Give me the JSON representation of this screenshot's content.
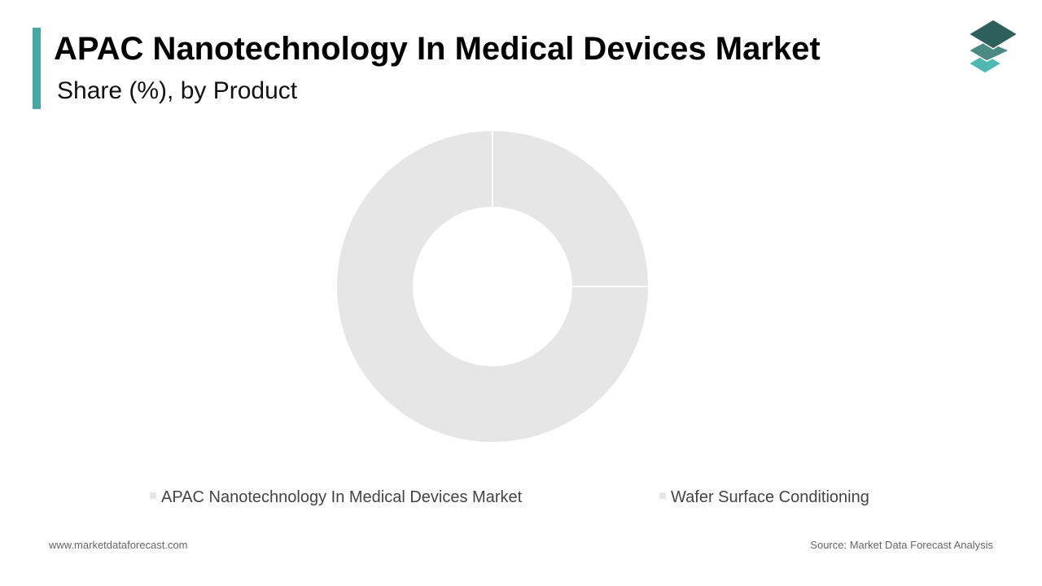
{
  "header": {
    "title": "APAC Nanotechnology In Medical Devices Market",
    "subtitle": "Share (%), by Product"
  },
  "logo": {
    "icon": "stacked-layers-icon",
    "colors": [
      "#2f5f5a",
      "#4a8a83",
      "#4fb8b2"
    ]
  },
  "theme": {
    "accent": "#4aa8a4",
    "slice_color": "#e6e6e6",
    "slice_border": "#ffffff"
  },
  "chart_data": {
    "type": "pie",
    "donut": true,
    "title": "APAC Nanotechnology In Medical Devices Market",
    "subtitle": "Share (%), by Product",
    "labels": [
      "APAC Nanotechnology In Medical Devices Market",
      "Wafer Surface Conditioning"
    ],
    "values": [
      25,
      75
    ],
    "legend_position": "bottom",
    "data_labels": false
  },
  "footer": {
    "website": "www.marketdataforecast.com",
    "source": "Source: Market Data Forecast Analysis"
  }
}
